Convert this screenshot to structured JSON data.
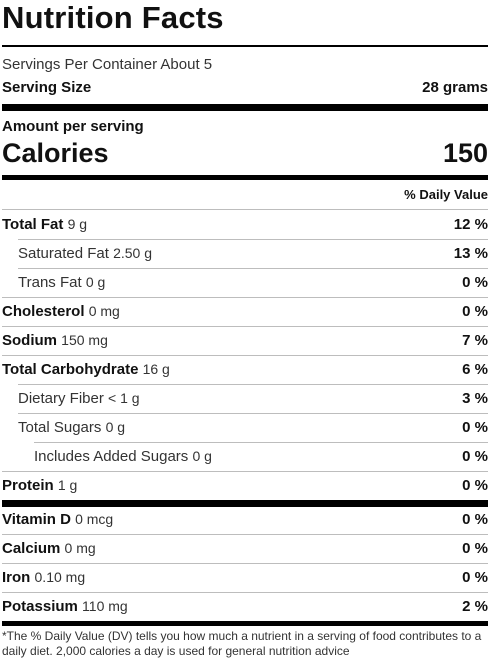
{
  "title": "Nutrition Facts",
  "servings_per_container": "Servings Per Container About 5",
  "serving_size_label": "Serving Size",
  "serving_size_value": "28 grams",
  "amount_per_serving": "Amount per serving",
  "calories_label": "Calories",
  "calories_value": "150",
  "daily_value_header": "% Daily Value",
  "nutrients": [
    {
      "name": "Total Fat",
      "amount": "9 g",
      "dv": "12 %"
    },
    {
      "name": "Saturated Fat",
      "amount": "2.50 g",
      "dv": "13 %"
    },
    {
      "name": "Trans Fat",
      "amount": "0 g",
      "dv": "0 %"
    },
    {
      "name": "Cholesterol",
      "amount": "0 mg",
      "dv": "0 %"
    },
    {
      "name": "Sodium",
      "amount": "150 mg",
      "dv": "7 %"
    },
    {
      "name": "Total Carbohydrate",
      "amount": "16 g",
      "dv": "6 %"
    },
    {
      "name": "Dietary Fiber",
      "amount": "< 1 g",
      "dv": "3 %"
    },
    {
      "name": "Total Sugars",
      "amount": "0 g",
      "dv": "0 %"
    },
    {
      "name": "Includes Added Sugars",
      "amount": "0 g",
      "dv": "0 %"
    },
    {
      "name": "Protein",
      "amount": "1 g",
      "dv": "0 %"
    }
  ],
  "vitamins": [
    {
      "name": "Vitamin D",
      "amount": "0 mcg",
      "dv": "0 %"
    },
    {
      "name": "Calcium",
      "amount": "0 mg",
      "dv": "0 %"
    },
    {
      "name": "Iron",
      "amount": "0.10 mg",
      "dv": "0 %"
    },
    {
      "name": "Potassium",
      "amount": "110 mg",
      "dv": "2 %"
    }
  ],
  "footnote": "*The % Daily Value (DV) tells you how much a nutrient in a serving of food contributes to a daily diet. 2,000 calories a day is used for general nutrition advice"
}
